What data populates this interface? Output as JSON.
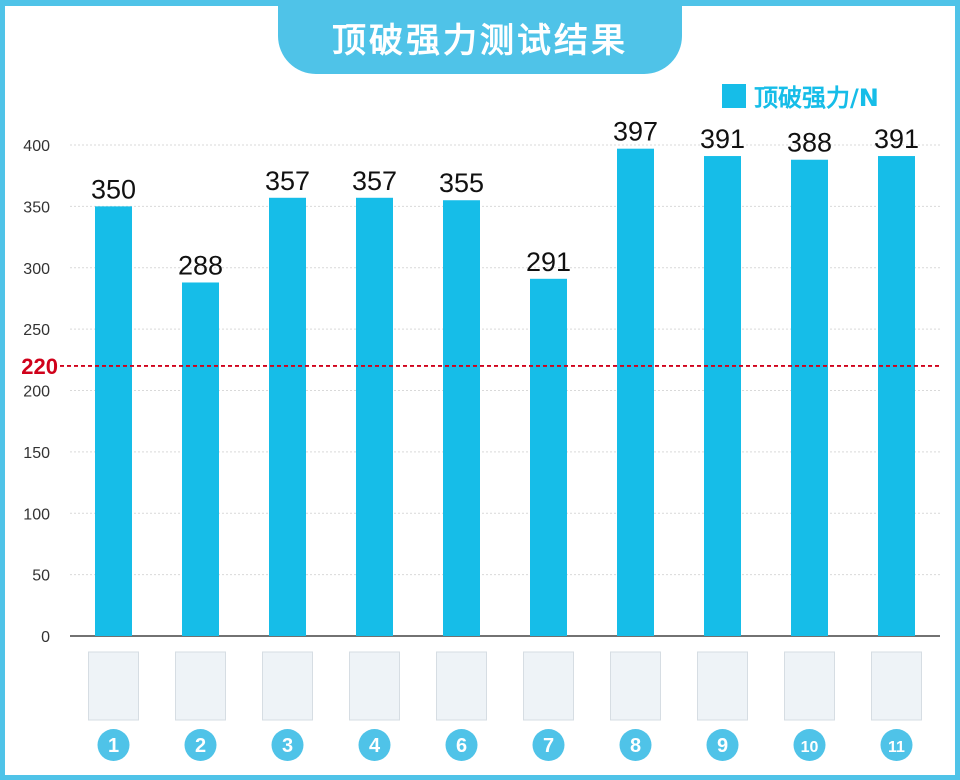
{
  "title": "顶破强力测试结果",
  "legend": {
    "label": "顶破强力/N",
    "color": "#16bde8"
  },
  "colors": {
    "bar": "#16bde8",
    "badge": "#4fc3e8",
    "reference": "#d0021b",
    "frame": "#4fc3e8"
  },
  "chart_data": {
    "type": "bar",
    "categories": [
      "1",
      "2",
      "3",
      "4",
      "6",
      "7",
      "8",
      "9",
      "10",
      "11"
    ],
    "series": [
      {
        "name": "顶破强力/N",
        "values": [
          350,
          288,
          357,
          357,
          355,
          291,
          397,
          391,
          388,
          391
        ]
      }
    ],
    "data_labels": [
      "350",
      "288",
      "357",
      "357",
      "355",
      "291",
      "397",
      "391",
      "388",
      "391"
    ],
    "yticks": [
      "0",
      "50",
      "100",
      "150",
      "200",
      "250",
      "300",
      "350",
      "400"
    ],
    "ylim": [
      0,
      400
    ],
    "grid": true,
    "reference_line": {
      "value": 220,
      "label": "220",
      "style": "dashed"
    },
    "legend_position": "top-right",
    "xlabel": "",
    "ylabel": ""
  }
}
